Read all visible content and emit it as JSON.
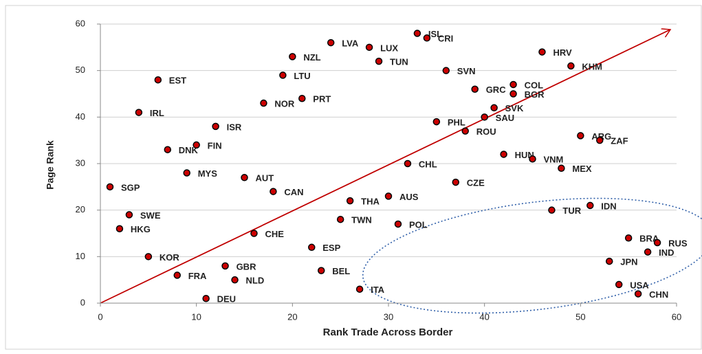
{
  "chart_data": {
    "type": "scatter",
    "xlabel": "Rank Trade Across Border",
    "ylabel": "Page Rank",
    "xlim": [
      0,
      60
    ],
    "ylim": [
      0,
      60
    ],
    "xticks": [
      0,
      10,
      20,
      30,
      40,
      50,
      60
    ],
    "yticks": [
      0,
      10,
      20,
      30,
      40,
      50,
      60
    ],
    "grid": true,
    "color": "#cc0000",
    "labels": [
      "SGP",
      "SWE",
      "HKG",
      "KOR",
      "FRA",
      "DEU",
      "GBR",
      "NLD",
      "CHE",
      "CAN",
      "AUT",
      "MYS",
      "DNK",
      "FIN",
      "ISR",
      "IRL",
      "EST",
      "NOR",
      "PRT",
      "LTU",
      "NZL",
      "LVA",
      "LUX",
      "TUN",
      "ISL",
      "CRI",
      "SVN",
      "GRC",
      "COL",
      "BGR",
      "SVK",
      "SAU",
      "PHL",
      "ROU",
      "HRV",
      "KHM",
      "ARG",
      "ZAF",
      "HUN",
      "VNM",
      "MEX",
      "CHL",
      "CZE",
      "AUS",
      "THA",
      "TWN",
      "POL",
      "ESP",
      "BEL",
      "ITA",
      "TUR",
      "IDN",
      "BRA",
      "RUS",
      "IND",
      "JPN",
      "USA",
      "CHN"
    ],
    "x": [
      1,
      3,
      2,
      5,
      8,
      11,
      13,
      14,
      16,
      18,
      15,
      9,
      7,
      10,
      12,
      4,
      6,
      17,
      21,
      19,
      20,
      24,
      28,
      29,
      33,
      34,
      36,
      39,
      43,
      43,
      41,
      40,
      35,
      38,
      46,
      49,
      50,
      52,
      42,
      45,
      48,
      32,
      37,
      30,
      26,
      25,
      31,
      22,
      23,
      27,
      47,
      51,
      55,
      58,
      57,
      53,
      54,
      56
    ],
    "values": [
      25,
      19,
      16,
      10,
      6,
      1,
      8,
      5,
      15,
      24,
      27,
      28,
      33,
      34,
      38,
      41,
      48,
      43,
      44,
      49,
      53,
      56,
      55,
      52,
      58,
      57,
      50,
      46,
      47,
      45,
      42,
      40,
      39,
      37,
      54,
      51,
      36,
      35,
      32,
      31,
      29,
      30,
      26,
      23,
      22,
      18,
      17,
      12,
      7,
      3,
      20,
      21,
      14,
      13,
      11,
      9,
      4,
      2
    ]
  }
}
